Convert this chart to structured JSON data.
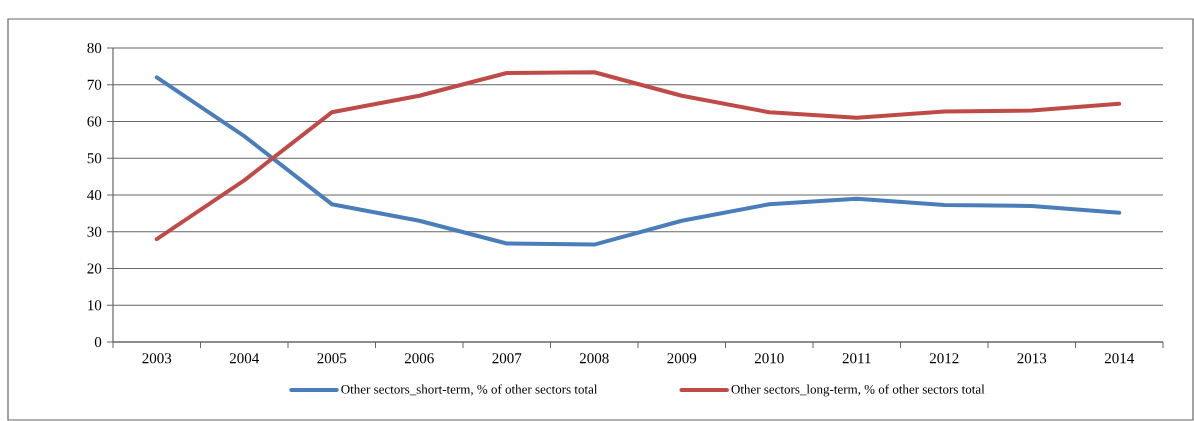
{
  "chart_data": {
    "type": "line",
    "categories": [
      "2003",
      "2004",
      "2005",
      "2006",
      "2007",
      "2008",
      "2009",
      "2010",
      "2011",
      "2012",
      "2013",
      "2014"
    ],
    "series": [
      {
        "name": "Other sectors_short-term, % of other sectors total",
        "color": "#4a7ebb",
        "values": [
          72,
          56,
          37.5,
          33,
          26.8,
          26.5,
          33,
          37.5,
          39,
          37.3,
          37,
          35.2
        ]
      },
      {
        "name": "Other sectors_long-term, % of other sectors total",
        "color": "#be4b48",
        "values": [
          28,
          44,
          62.5,
          67,
          73.2,
          73.4,
          67,
          62.5,
          61,
          62.7,
          63,
          64.8
        ]
      }
    ],
    "ylim": [
      0,
      80
    ],
    "yticks": [
      0,
      10,
      20,
      30,
      40,
      50,
      60,
      70,
      80
    ],
    "grid": "y",
    "legend": "bottom",
    "marker": "none",
    "line_style": "solid"
  }
}
